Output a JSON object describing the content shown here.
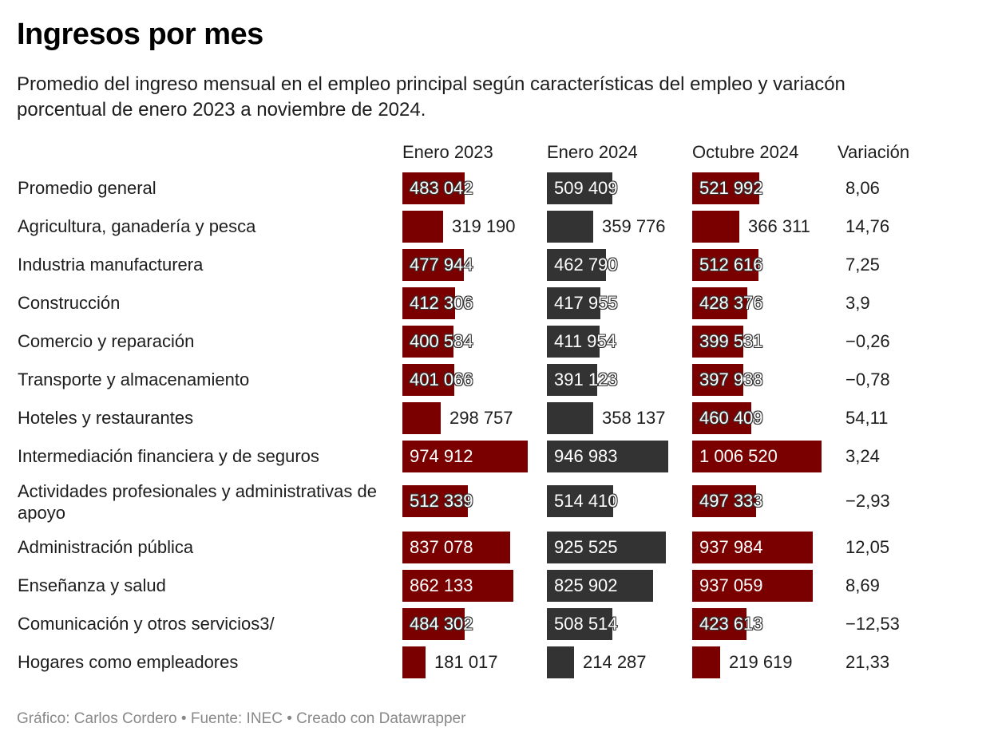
{
  "title": "Ingresos por mes",
  "subtitle": "Promedio del ingreso mensual en el empleo principal según características del empleo y variacón porcentual de enero 2023 a noviembre de 2024.",
  "footer": "Gráfico: Carlos Cordero • Fuente: INEC • Creado con Datawrapper",
  "colors": {
    "bar_red": "#7a0000",
    "bar_dark": "#333333"
  },
  "chart_data": {
    "type": "table",
    "title": "Ingresos por mes",
    "columns": [
      "Enero 2023",
      "Enero 2024",
      "Octubre 2024",
      "Variación"
    ],
    "bar_max": 1006520,
    "rows": [
      {
        "label": "Promedio general",
        "enero_2023": 483042,
        "enero_2024": 509409,
        "octubre_2024": 521992,
        "variacion": 8.06,
        "t": [
          "483 042",
          "509 409",
          "521 992",
          "8,06"
        ]
      },
      {
        "label": "Agricultura, ganadería y pesca",
        "enero_2023": 319190,
        "enero_2024": 359776,
        "octubre_2024": 366311,
        "variacion": 14.76,
        "t": [
          "319 190",
          "359 776",
          "366 311",
          "14,76"
        ]
      },
      {
        "label": "Industria manufacturera",
        "enero_2023": 477944,
        "enero_2024": 462790,
        "octubre_2024": 512616,
        "variacion": 7.25,
        "t": [
          "477 944",
          "462 790",
          "512 616",
          "7,25"
        ]
      },
      {
        "label": "Construcción",
        "enero_2023": 412306,
        "enero_2024": 417955,
        "octubre_2024": 428376,
        "variacion": 3.9,
        "t": [
          "412 306",
          "417 955",
          "428 376",
          "3,9"
        ]
      },
      {
        "label": "Comercio y reparación",
        "enero_2023": 400584,
        "enero_2024": 411954,
        "octubre_2024": 399531,
        "variacion": -0.26,
        "t": [
          "400 584",
          "411 954",
          "399 531",
          "−0,26"
        ]
      },
      {
        "label": "Transporte y almacenamiento",
        "enero_2023": 401066,
        "enero_2024": 391123,
        "octubre_2024": 397938,
        "variacion": -0.78,
        "t": [
          "401 066",
          "391 123",
          "397 938",
          "−0,78"
        ]
      },
      {
        "label": "Hoteles y restaurantes",
        "enero_2023": 298757,
        "enero_2024": 358137,
        "octubre_2024": 460409,
        "variacion": 54.11,
        "t": [
          "298 757",
          "358 137",
          "460 409",
          "54,11"
        ]
      },
      {
        "label": "Intermediación financiera y de seguros",
        "enero_2023": 974912,
        "enero_2024": 946983,
        "octubre_2024": 1006520,
        "variacion": 3.24,
        "t": [
          "974 912",
          "946 983",
          "1 006 520",
          "3,24"
        ]
      },
      {
        "label": "Actividades profesionales y administrativas de apoyo",
        "enero_2023": 512339,
        "enero_2024": 514410,
        "octubre_2024": 497333,
        "variacion": -2.93,
        "t": [
          "512 339",
          "514 410",
          "497 333",
          "−2,93"
        ]
      },
      {
        "label": "Administración pública",
        "enero_2023": 837078,
        "enero_2024": 925525,
        "octubre_2024": 937984,
        "variacion": 12.05,
        "t": [
          "837 078",
          "925 525",
          "937 984",
          "12,05"
        ]
      },
      {
        "label": "Enseñanza y salud",
        "enero_2023": 862133,
        "enero_2024": 825902,
        "octubre_2024": 937059,
        "variacion": 8.69,
        "t": [
          "862 133",
          "825 902",
          "937 059",
          "8,69"
        ]
      },
      {
        "label": "Comunicación y otros servicios3/",
        "enero_2023": 484302,
        "enero_2024": 508514,
        "octubre_2024": 423613,
        "variacion": -12.53,
        "t": [
          "484 302",
          "508 514",
          "423 613",
          "−12,53"
        ]
      },
      {
        "label": "Hogares como empleadores",
        "enero_2023": 181017,
        "enero_2024": 214287,
        "octubre_2024": 219619,
        "variacion": 21.33,
        "t": [
          "181 017",
          "214 287",
          "219 619",
          "21,33"
        ]
      }
    ]
  }
}
